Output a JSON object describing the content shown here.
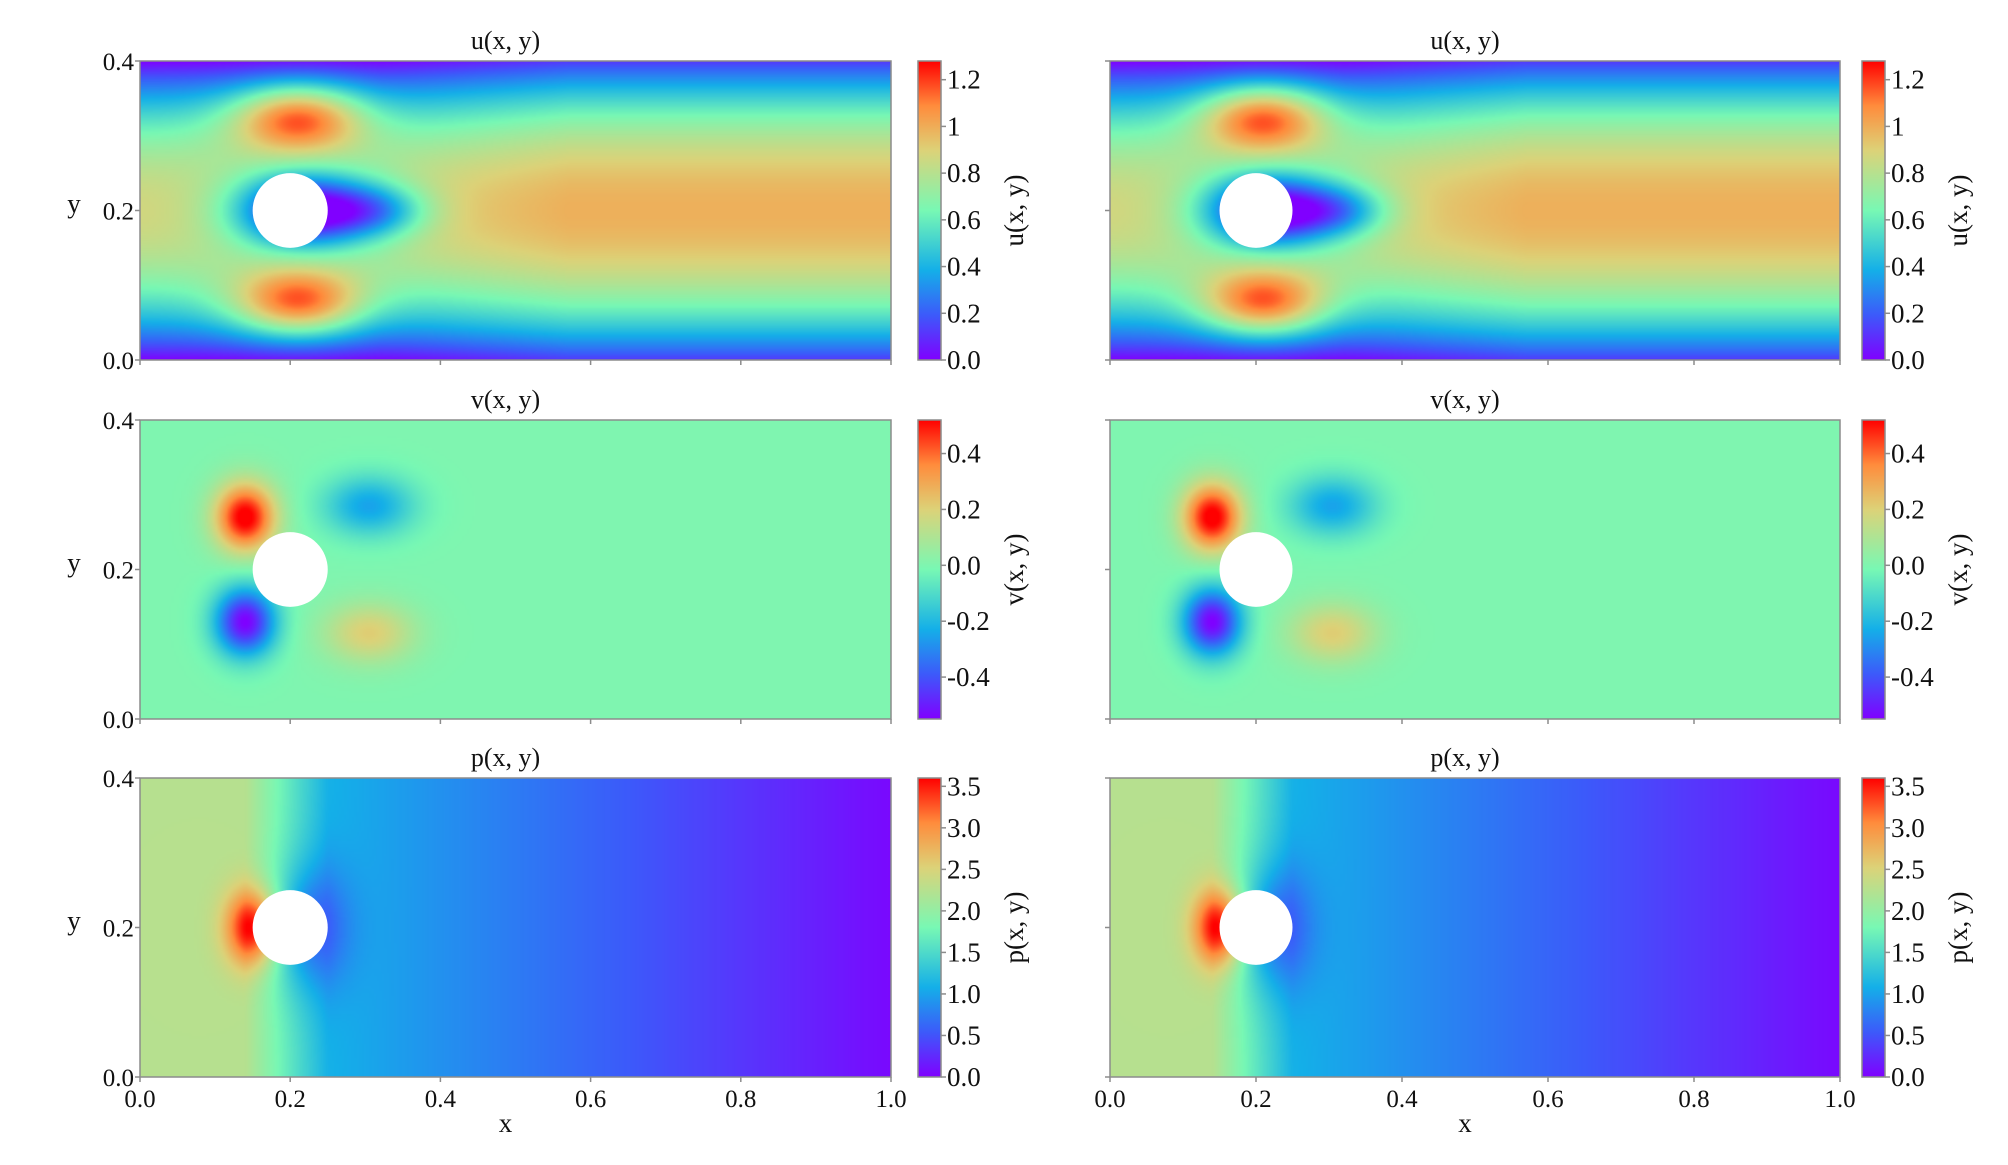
{
  "chart_data": [
    {
      "type": "heatmap",
      "panel": "left-top",
      "field": "u",
      "title": "u(x, y)",
      "ylabel": "y",
      "xlabel": "",
      "colorbar_label": "u(x, y)",
      "xlim": [
        0.0,
        1.0
      ],
      "ylim": [
        0.0,
        0.4
      ],
      "clim": [
        0.0,
        1.28
      ],
      "colormap": "rainbow",
      "y_ticks": [
        "0.0",
        "0.2",
        "0.4"
      ],
      "x_ticks": [],
      "colorbar_ticks": [
        "0.0",
        "0.2",
        "0.4",
        "0.6",
        "0.8",
        "1",
        "1.2"
      ],
      "colorbar_tick_values": [
        0.0,
        0.2,
        0.4,
        0.6,
        0.8,
        1.0,
        1.2
      ],
      "cylinder": {
        "cx": 0.2,
        "cy": 0.2,
        "r": 0.05
      }
    },
    {
      "type": "heatmap",
      "panel": "right-top",
      "field": "u",
      "title": "u(x, y)",
      "ylabel": "",
      "xlabel": "",
      "colorbar_label": "u(x, y)",
      "xlim": [
        0.0,
        1.0
      ],
      "ylim": [
        0.0,
        0.4
      ],
      "clim": [
        0.0,
        1.28
      ],
      "colormap": "rainbow",
      "y_ticks": [],
      "x_ticks": [],
      "colorbar_ticks": [
        "0.0",
        "0.2",
        "0.4",
        "0.6",
        "0.8",
        "1",
        "1.2"
      ],
      "colorbar_tick_values": [
        0.0,
        0.2,
        0.4,
        0.6,
        0.8,
        1.0,
        1.2
      ],
      "cylinder": {
        "cx": 0.2,
        "cy": 0.2,
        "r": 0.05
      }
    },
    {
      "type": "heatmap",
      "panel": "left-middle",
      "field": "v",
      "title": "v(x, y)",
      "ylabel": "y",
      "xlabel": "",
      "colorbar_label": "v(x, y)",
      "xlim": [
        0.0,
        1.0
      ],
      "ylim": [
        0.0,
        0.4
      ],
      "clim": [
        -0.55,
        0.52
      ],
      "colormap": "rainbow",
      "y_ticks": [
        "0.0",
        "0.2",
        "0.4"
      ],
      "x_ticks": [],
      "colorbar_ticks": [
        "-0.4",
        "-0.2",
        "0.0",
        "0.2",
        "0.4"
      ],
      "colorbar_tick_values": [
        -0.4,
        -0.2,
        0.0,
        0.2,
        0.4
      ],
      "cylinder": {
        "cx": 0.2,
        "cy": 0.2,
        "r": 0.05
      }
    },
    {
      "type": "heatmap",
      "panel": "right-middle",
      "field": "v",
      "title": "v(x, y)",
      "ylabel": "",
      "xlabel": "",
      "colorbar_label": "v(x, y)",
      "xlim": [
        0.0,
        1.0
      ],
      "ylim": [
        0.0,
        0.4
      ],
      "clim": [
        -0.55,
        0.52
      ],
      "colormap": "rainbow",
      "y_ticks": [],
      "x_ticks": [],
      "colorbar_ticks": [
        "-0.4",
        "-0.2",
        "0.0",
        "0.2",
        "0.4"
      ],
      "colorbar_tick_values": [
        -0.4,
        -0.2,
        0.0,
        0.2,
        0.4
      ],
      "cylinder": {
        "cx": 0.2,
        "cy": 0.2,
        "r": 0.05
      }
    },
    {
      "type": "heatmap",
      "panel": "left-bottom",
      "field": "p",
      "title": "p(x, y)",
      "ylabel": "y",
      "xlabel": "x",
      "colorbar_label": "p(x, y)",
      "xlim": [
        0.0,
        1.0
      ],
      "ylim": [
        0.0,
        0.4
      ],
      "clim": [
        0.0,
        3.6
      ],
      "colormap": "rainbow",
      "y_ticks": [
        "0.0",
        "0.2",
        "0.4"
      ],
      "x_ticks": [
        "0.0",
        "0.2",
        "0.4",
        "0.6",
        "0.8",
        "1.0"
      ],
      "colorbar_ticks": [
        "0.0",
        "0.5",
        "1.0",
        "1.5",
        "2.0",
        "2.5",
        "3.0",
        "3.5"
      ],
      "colorbar_tick_values": [
        0.0,
        0.5,
        1.0,
        1.5,
        2.0,
        2.5,
        3.0,
        3.5
      ],
      "cylinder": {
        "cx": 0.2,
        "cy": 0.2,
        "r": 0.05
      }
    },
    {
      "type": "heatmap",
      "panel": "right-bottom",
      "field": "p",
      "title": "p(x, y)",
      "ylabel": "",
      "xlabel": "x",
      "colorbar_label": "p(x, y)",
      "xlim": [
        0.0,
        1.0
      ],
      "ylim": [
        0.0,
        0.4
      ],
      "clim": [
        0.0,
        3.6
      ],
      "colormap": "rainbow",
      "y_ticks": [],
      "x_ticks": [
        "0.0",
        "0.2",
        "0.4",
        "0.6",
        "0.8",
        "1.0"
      ],
      "colorbar_ticks": [
        "0.0",
        "0.5",
        "1.0",
        "1.5",
        "2.0",
        "2.5",
        "3.0",
        "3.5"
      ],
      "colorbar_tick_values": [
        0.0,
        0.5,
        1.0,
        1.5,
        2.0,
        2.5,
        3.0,
        3.5
      ],
      "cylinder": {
        "cx": 0.2,
        "cy": 0.2,
        "r": 0.05
      }
    }
  ]
}
